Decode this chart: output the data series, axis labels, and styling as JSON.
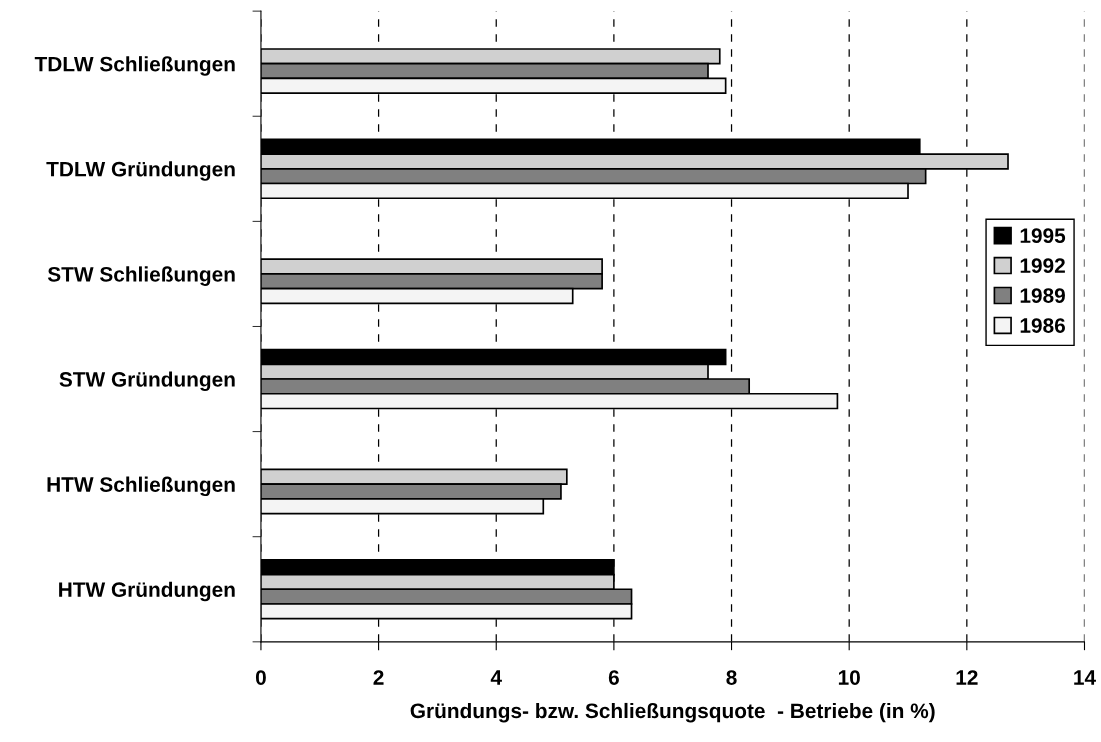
{
  "chart_data": {
    "type": "bar",
    "orientation": "horizontal",
    "xlabel": "Gründungs- bzw. Schließungsquote  - Betriebe (in %)",
    "categories": [
      "TDLW Schließungen",
      "TDLW Gründungen",
      "STW Schließungen",
      "STW Gründungen",
      "HTW Schließungen",
      "HTW Gründungen"
    ],
    "series": [
      {
        "name": "1995",
        "color": "#000000",
        "values": [
          null,
          11.2,
          null,
          7.9,
          null,
          6.0
        ]
      },
      {
        "name": "1992",
        "color": "#d0d0d0",
        "values": [
          7.8,
          12.7,
          5.8,
          7.6,
          5.2,
          6.0
        ]
      },
      {
        "name": "1989",
        "color": "#808080",
        "values": [
          7.6,
          11.3,
          5.8,
          8.3,
          5.1,
          6.3
        ]
      },
      {
        "name": "1986",
        "color": "#f4f4f4",
        "values": [
          7.9,
          11.0,
          5.3,
          9.8,
          4.8,
          6.3
        ]
      }
    ],
    "xlim": [
      0,
      14
    ],
    "xticks": [
      0,
      2,
      4,
      6,
      8,
      10,
      12,
      14
    ],
    "grid": "x",
    "legend": "right"
  }
}
